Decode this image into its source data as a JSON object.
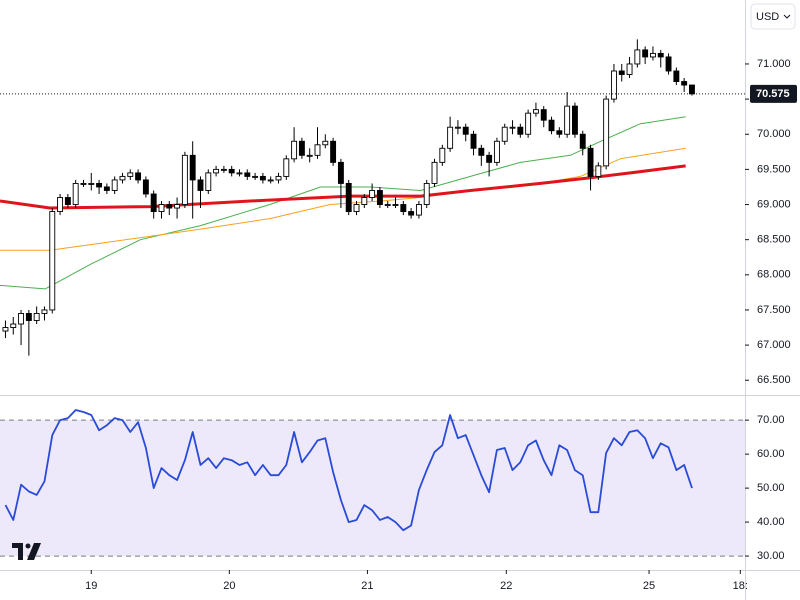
{
  "chart_data": {
    "type": "candlestick",
    "currency": "USD",
    "x": [
      5,
      6,
      7,
      8,
      9,
      10,
      11,
      12,
      13,
      14,
      15,
      16,
      17,
      18,
      19,
      20,
      21,
      22,
      23,
      24,
      25,
      26,
      27,
      28,
      29,
      30,
      31,
      32,
      33,
      34,
      35,
      36,
      37,
      38,
      39,
      40,
      41,
      42,
      43,
      44,
      45,
      46,
      47,
      48,
      49,
      50,
      51,
      52,
      53,
      54,
      55,
      56,
      57,
      58,
      59,
      60,
      61,
      62,
      63,
      64,
      65,
      66,
      67,
      68,
      69,
      70,
      71,
      72,
      73,
      74,
      75,
      76,
      77,
      78,
      79,
      80,
      81,
      82,
      83,
      84,
      85,
      86,
      87,
      88,
      89,
      90,
      91,
      92,
      93
    ],
    "open": [
      67.2,
      67.25,
      67.3,
      67.45,
      67.35,
      67.45,
      67.5,
      68.9,
      69.1,
      69.0,
      69.3,
      69.3,
      69.3,
      69.25,
      69.2,
      69.35,
      69.4,
      69.45,
      69.35,
      69.15,
      68.9,
      69.0,
      68.95,
      69.0,
      69.7,
      69.35,
      69.2,
      69.45,
      69.5,
      69.5,
      69.45,
      69.45,
      69.4,
      69.4,
      69.35,
      69.35,
      69.4,
      69.65,
      69.9,
      69.7,
      69.7,
      69.85,
      69.9,
      69.6,
      69.3,
      68.9,
      69.0,
      69.1,
      69.2,
      69.0,
      69.0,
      69.0,
      68.9,
      68.85,
      69.0,
      69.3,
      69.6,
      69.8,
      70.1,
      70.1,
      70.0,
      69.8,
      69.7,
      69.6,
      69.9,
      70.1,
      70.1,
      70.0,
      70.3,
      70.35,
      70.2,
      70.05,
      70.0,
      70.4,
      70.0,
      69.8,
      69.4,
      69.55,
      70.5,
      70.9,
      70.85,
      71.0,
      71.2,
      71.1,
      71.15,
      71.1,
      70.9,
      70.75,
      70.7
    ],
    "high": [
      67.35,
      67.4,
      67.5,
      67.5,
      67.55,
      67.55,
      68.95,
      69.15,
      69.15,
      69.35,
      69.35,
      69.45,
      69.35,
      69.3,
      69.4,
      69.45,
      69.5,
      69.5,
      69.4,
      69.2,
      69.05,
      69.05,
      69.1,
      69.75,
      69.9,
      69.4,
      69.5,
      69.55,
      69.55,
      69.55,
      69.5,
      69.5,
      69.45,
      69.45,
      69.4,
      69.45,
      69.7,
      70.1,
      69.95,
      69.8,
      70.1,
      70.0,
      69.95,
      69.65,
      69.35,
      69.05,
      69.15,
      69.3,
      69.25,
      69.05,
      69.1,
      69.05,
      68.95,
      69.05,
      69.35,
      69.65,
      69.85,
      70.25,
      70.2,
      70.15,
      70.05,
      69.85,
      69.75,
      69.95,
      70.15,
      70.2,
      70.15,
      70.35,
      70.45,
      70.4,
      70.25,
      70.1,
      70.6,
      70.45,
      70.05,
      69.85,
      69.6,
      70.55,
      71.0,
      71.0,
      71.1,
      71.35,
      71.25,
      71.25,
      71.2,
      71.15,
      70.95,
      70.8,
      70.7
    ],
    "low": [
      67.1,
      67.15,
      67.0,
      66.85,
      67.3,
      67.35,
      67.45,
      68.85,
      68.95,
      68.95,
      69.25,
      69.2,
      69.15,
      69.15,
      69.15,
      69.3,
      69.35,
      69.3,
      69.1,
      68.8,
      68.8,
      68.85,
      68.8,
      68.95,
      68.8,
      68.95,
      69.15,
      69.4,
      69.45,
      69.4,
      69.4,
      69.35,
      69.35,
      69.3,
      69.3,
      69.3,
      69.35,
      69.6,
      69.65,
      69.6,
      69.65,
      69.8,
      69.55,
      68.95,
      68.85,
      68.85,
      68.95,
      69.05,
      68.95,
      68.95,
      68.95,
      68.85,
      68.8,
      68.8,
      68.95,
      69.25,
      69.55,
      69.75,
      70.0,
      69.9,
      69.7,
      69.55,
      69.4,
      69.55,
      69.85,
      70.0,
      69.95,
      69.95,
      70.25,
      70.1,
      70.0,
      69.95,
      69.95,
      69.95,
      69.7,
      69.2,
      69.35,
      69.5,
      70.45,
      70.75,
      70.8,
      70.95,
      71.0,
      71.05,
      70.95,
      70.85,
      70.7,
      70.6,
      70.55
    ],
    "close": [
      67.25,
      67.3,
      67.45,
      67.35,
      67.45,
      67.5,
      68.9,
      69.1,
      69.0,
      69.3,
      69.3,
      69.3,
      69.25,
      69.2,
      69.35,
      69.4,
      69.45,
      69.35,
      69.15,
      68.9,
      69.0,
      68.95,
      69.0,
      69.7,
      69.35,
      69.2,
      69.45,
      69.5,
      69.5,
      69.45,
      69.45,
      69.4,
      69.4,
      69.35,
      69.35,
      69.4,
      69.65,
      69.9,
      69.7,
      69.7,
      69.85,
      69.9,
      69.6,
      69.3,
      68.9,
      69.0,
      69.1,
      69.2,
      69.0,
      69.0,
      69.0,
      68.9,
      68.85,
      69.0,
      69.3,
      69.6,
      69.8,
      70.1,
      70.1,
      70.0,
      69.8,
      69.7,
      69.6,
      69.9,
      70.1,
      70.1,
      70.0,
      70.3,
      70.35,
      70.2,
      70.05,
      70.0,
      70.4,
      70.0,
      69.8,
      69.4,
      69.55,
      70.5,
      70.9,
      70.85,
      71.0,
      71.2,
      71.1,
      71.15,
      71.1,
      70.9,
      70.75,
      70.7,
      70.575
    ],
    "up_color": "#ffffff",
    "down_color": "#000000",
    "xlim": [
      4.3,
      99.8
    ],
    "xticks": [
      {
        "value": 16,
        "label": "19"
      },
      {
        "value": 33.7,
        "label": "20"
      },
      {
        "value": 51.4,
        "label": "21"
      },
      {
        "value": 69.2,
        "label": "22"
      },
      {
        "value": 87.5,
        "label": "25"
      },
      {
        "value": 99.2,
        "label": "18:"
      }
    ],
    "ylim": [
      66.29,
      71.91
    ],
    "yticks": [
      {
        "value": 71,
        "label": "71.000"
      },
      {
        "value": 70.5,
        "label": "70.500"
      },
      {
        "value": 70,
        "label": "70.000"
      },
      {
        "value": 69.5,
        "label": "69.500"
      },
      {
        "value": 69,
        "label": "69.000"
      },
      {
        "value": 68.5,
        "label": "68.500"
      },
      {
        "value": 68,
        "label": "68.000"
      },
      {
        "value": 67.5,
        "label": "67.500"
      },
      {
        "value": 67,
        "label": "67.000"
      },
      {
        "value": 66.5,
        "label": "66.500"
      }
    ],
    "last_price": {
      "value": 70.575,
      "label": "70.575"
    },
    "moving_averages": [
      {
        "color": "#4caf50",
        "width": 1,
        "x": [
          4.3,
          10.1,
          15.9,
          22.3,
          30.0,
          38.9,
          45.4,
          51.8,
          58.2,
          64.6,
          71.0,
          77.4,
          81.3,
          86.4,
          92.2
        ],
        "values": [
          67.85,
          67.8,
          68.15,
          68.5,
          68.7,
          69.0,
          69.25,
          69.25,
          69.2,
          69.4,
          69.6,
          69.7,
          69.9,
          70.15,
          70.25
        ]
      },
      {
        "color": "#f7a21b",
        "width": 1,
        "x": [
          4.3,
          10.7,
          17.2,
          23.6,
          30.0,
          38.9,
          46.6,
          53.1,
          58.2,
          64.6,
          73.6,
          78.7,
          83.8,
          92.2
        ],
        "values": [
          68.35,
          68.35,
          68.45,
          68.55,
          68.65,
          68.8,
          69.0,
          69.05,
          69.1,
          69.2,
          69.3,
          69.4,
          69.65,
          69.8
        ]
      },
      {
        "color": "#e0151b",
        "width": 3,
        "x": [
          4.3,
          10.7,
          23.6,
          36.4,
          49.2,
          58.2,
          64.6,
          73.6,
          80.0,
          85.1,
          92.2
        ],
        "values": [
          69.05,
          68.95,
          68.97,
          69.05,
          69.12,
          69.12,
          69.2,
          69.3,
          69.38,
          69.45,
          69.55
        ]
      }
    ],
    "rsi": {
      "color": "#2a4bd7",
      "band_color": "#ede9fb",
      "levels": [
        30,
        70
      ],
      "ylim": [
        25.9,
        77.4
      ],
      "yticks": [
        {
          "value": 70,
          "label": "70.00"
        },
        {
          "value": 60,
          "label": "60.00"
        },
        {
          "value": 50,
          "label": "50.00"
        },
        {
          "value": 40,
          "label": "40.00"
        },
        {
          "value": 30,
          "label": "30.00"
        }
      ],
      "values": [
        45,
        40.6,
        51,
        49,
        48,
        52,
        65.6,
        70,
        70.6,
        73,
        72.4,
        71.5,
        67,
        68.5,
        70.6,
        70,
        66.5,
        69.4,
        61.8,
        50,
        55.9,
        53.8,
        52.4,
        58.2,
        66.5,
        56.8,
        58.8,
        55.9,
        58.8,
        58.2,
        56.8,
        57.6,
        53.8,
        56.8,
        53.8,
        53.8,
        56.8,
        66.5,
        57.6,
        60.6,
        64,
        64.7,
        54.7,
        46.5,
        40,
        40.6,
        45,
        43.5,
        40.6,
        41.5,
        40,
        37.6,
        39,
        49.4,
        55.3,
        60.6,
        62.6,
        71.5,
        64.7,
        65.6,
        59.7,
        53.8,
        48.8,
        61.2,
        61.8,
        55.3,
        57.6,
        62.6,
        64,
        58.2,
        53.8,
        62.6,
        61.2,
        55.3,
        53.8,
        42.9,
        42.9,
        60.3,
        64.7,
        62.6,
        66.5,
        67,
        64.7,
        58.8,
        63.2,
        62,
        55.3,
        56.8,
        50
      ]
    }
  }
}
